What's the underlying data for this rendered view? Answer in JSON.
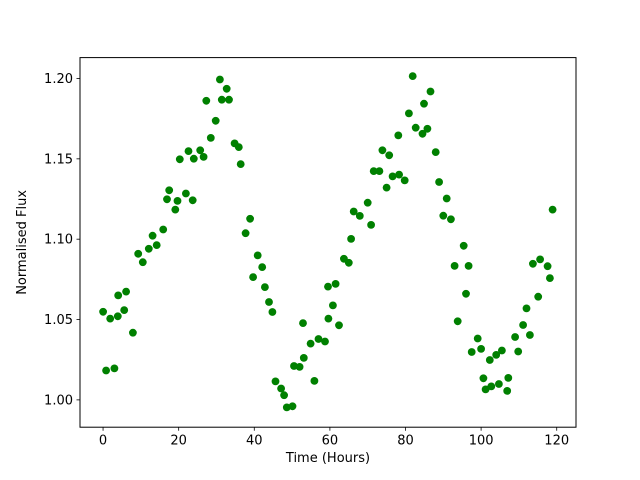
{
  "chart_data": {
    "type": "scatter",
    "title": "",
    "xlabel": "Time (Hours)",
    "ylabel": "Normalised Flux",
    "xlim": [
      -6.1,
      125.1
    ],
    "ylim": [
      0.983,
      1.213
    ],
    "x_ticks": [
      0,
      20,
      40,
      60,
      80,
      100,
      120
    ],
    "x_tick_labels": [
      "0",
      "20",
      "40",
      "60",
      "80",
      "100",
      "120"
    ],
    "y_ticks": [
      1.0,
      1.05,
      1.1,
      1.15,
      1.2
    ],
    "y_tick_labels": [
      "1.00",
      "1.05",
      "1.10",
      "1.15",
      "1.20"
    ],
    "grid": false,
    "legend": null,
    "marker": "circle",
    "marker_color": "#008000",
    "background_color": "#ffffff",
    "axis_color": "#000000",
    "points": [
      [
        0.0,
        1.0548
      ],
      [
        0.8,
        1.0183
      ],
      [
        1.9,
        1.0506
      ],
      [
        3.0,
        1.0196
      ],
      [
        3.9,
        1.052
      ],
      [
        4.0,
        1.065
      ],
      [
        5.6,
        1.0559
      ],
      [
        6.1,
        1.0674
      ],
      [
        7.9,
        1.0418
      ],
      [
        9.3,
        1.0909
      ],
      [
        10.5,
        1.0857
      ],
      [
        12.1,
        1.094
      ],
      [
        13.1,
        1.1022
      ],
      [
        14.2,
        1.0963
      ],
      [
        15.9,
        1.106
      ],
      [
        16.9,
        1.1248
      ],
      [
        17.5,
        1.1304
      ],
      [
        19.1,
        1.1184
      ],
      [
        19.7,
        1.1238
      ],
      [
        20.3,
        1.1497
      ],
      [
        21.9,
        1.1284
      ],
      [
        22.6,
        1.1548
      ],
      [
        23.7,
        1.1242
      ],
      [
        24.0,
        1.1501
      ],
      [
        25.7,
        1.1553
      ],
      [
        26.6,
        1.1512
      ],
      [
        27.3,
        1.1861
      ],
      [
        28.5,
        1.163
      ],
      [
        29.8,
        1.1737
      ],
      [
        30.9,
        1.1994
      ],
      [
        31.4,
        1.1868
      ],
      [
        32.7,
        1.1936
      ],
      [
        33.3,
        1.1868
      ],
      [
        34.8,
        1.1596
      ],
      [
        35.9,
        1.1573
      ],
      [
        36.4,
        1.1467
      ],
      [
        37.7,
        1.1037
      ],
      [
        38.9,
        1.1127
      ],
      [
        39.7,
        1.0764
      ],
      [
        40.9,
        1.0899
      ],
      [
        42.1,
        1.0826
      ],
      [
        42.8,
        1.0702
      ],
      [
        43.9,
        1.0609
      ],
      [
        44.8,
        1.0547
      ],
      [
        45.6,
        1.0115
      ],
      [
        47.1,
        1.0071
      ],
      [
        47.9,
        1.0029
      ],
      [
        48.6,
        0.9953
      ],
      [
        50.1,
        0.996
      ],
      [
        50.5,
        1.0211
      ],
      [
        52.0,
        1.0205
      ],
      [
        52.9,
        1.0478
      ],
      [
        53.1,
        1.0261
      ],
      [
        54.9,
        1.035
      ],
      [
        55.9,
        1.0118
      ],
      [
        57.0,
        1.0379
      ],
      [
        58.7,
        1.0363
      ],
      [
        59.5,
        1.0705
      ],
      [
        59.6,
        1.0506
      ],
      [
        60.8,
        1.0588
      ],
      [
        61.5,
        1.0722
      ],
      [
        62.4,
        1.0464
      ],
      [
        63.7,
        1.0878
      ],
      [
        65.0,
        1.0853
      ],
      [
        65.6,
        1.1002
      ],
      [
        66.3,
        1.1172
      ],
      [
        67.9,
        1.1145
      ],
      [
        70.0,
        1.1227
      ],
      [
        70.9,
        1.1089
      ],
      [
        71.6,
        1.1424
      ],
      [
        73.1,
        1.1424
      ],
      [
        73.9,
        1.1553
      ],
      [
        75.0,
        1.1321
      ],
      [
        75.7,
        1.1522
      ],
      [
        76.6,
        1.1391
      ],
      [
        78.1,
        1.1646
      ],
      [
        78.3,
        1.1402
      ],
      [
        79.8,
        1.1366
      ],
      [
        80.9,
        1.1783
      ],
      [
        81.9,
        1.2015
      ],
      [
        82.7,
        1.1694
      ],
      [
        84.5,
        1.1656
      ],
      [
        84.9,
        1.1843
      ],
      [
        85.8,
        1.1687
      ],
      [
        86.6,
        1.1919
      ],
      [
        88.0,
        1.1542
      ],
      [
        88.9,
        1.1356
      ],
      [
        90.0,
        1.1146
      ],
      [
        90.9,
        1.1253
      ],
      [
        92.0,
        1.1124
      ],
      [
        93.0,
        1.0834
      ],
      [
        93.8,
        1.0489
      ],
      [
        95.4,
        1.0959
      ],
      [
        96.0,
        1.066
      ],
      [
        96.7,
        1.0834
      ],
      [
        97.5,
        1.0298
      ],
      [
        99.1,
        1.0382
      ],
      [
        100.0,
        1.0317
      ],
      [
        100.6,
        1.0134
      ],
      [
        101.2,
        1.0065
      ],
      [
        102.3,
        1.0248
      ],
      [
        102.7,
        1.0084
      ],
      [
        104.0,
        1.028
      ],
      [
        104.7,
        1.0099
      ],
      [
        105.5,
        1.0307
      ],
      [
        106.9,
        1.0056
      ],
      [
        107.2,
        1.0137
      ],
      [
        109.0,
        1.0391
      ],
      [
        109.8,
        1.0301
      ],
      [
        111.1,
        1.0466
      ],
      [
        112.0,
        1.0569
      ],
      [
        112.9,
        1.0404
      ],
      [
        113.7,
        1.0847
      ],
      [
        115.1,
        1.0642
      ],
      [
        115.6,
        1.0874
      ],
      [
        117.6,
        1.0832
      ],
      [
        118.2,
        1.0758
      ],
      [
        118.9,
        1.1184
      ]
    ]
  }
}
